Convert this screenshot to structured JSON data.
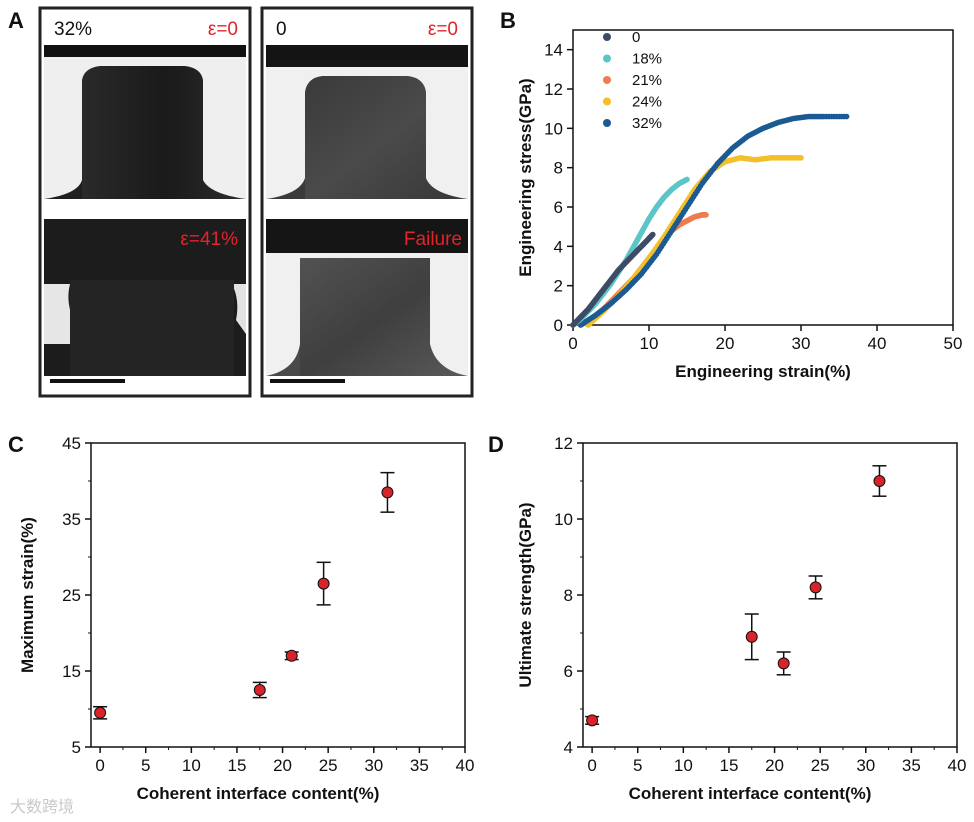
{
  "panels": {
    "A": {
      "label": "A",
      "images": [
        {
          "name": "left-top",
          "left_text": "32%",
          "right_text": "ε=0"
        },
        {
          "name": "left-bottom",
          "left_text": "",
          "right_text": "ε=41%"
        },
        {
          "name": "right-top",
          "left_text": "0",
          "right_text": "ε=0"
        },
        {
          "name": "right-bottom",
          "left_text": "",
          "right_text": "Failure"
        }
      ],
      "label_color_dark": "#111111",
      "label_color_red": "#e0242c"
    },
    "B": {
      "label": "B"
    },
    "C": {
      "label": "C"
    },
    "D": {
      "label": "D"
    }
  },
  "watermark": "大数跨境",
  "chart_data": [
    {
      "id": "B",
      "type": "scatter",
      "title": "",
      "xlabel": "Engineering strain(%)",
      "ylabel": "Engineering stress(GPa)",
      "xlim": [
        0,
        50
      ],
      "ylim": [
        0,
        15
      ],
      "xticks": [
        0,
        10,
        20,
        30,
        40,
        50
      ],
      "yticks": [
        0,
        2,
        4,
        6,
        8,
        10,
        12,
        14
      ],
      "legend_position": "top-left",
      "series": [
        {
          "name": "0",
          "color": "#3d4c66",
          "x": [
            0,
            1,
            2,
            3,
            4,
            5,
            6,
            7,
            8,
            9,
            10,
            10.5
          ],
          "y": [
            0,
            0.4,
            0.8,
            1.3,
            1.8,
            2.3,
            2.8,
            3.2,
            3.6,
            4.0,
            4.4,
            4.6
          ]
        },
        {
          "name": "18%",
          "color": "#5cc5c8",
          "x": [
            0,
            1,
            2,
            3,
            4,
            5,
            6,
            7,
            8,
            9,
            10,
            11,
            12,
            13,
            14,
            15
          ],
          "y": [
            0,
            0.3,
            0.7,
            1.1,
            1.6,
            2.1,
            2.7,
            3.3,
            4.0,
            4.7,
            5.4,
            6.0,
            6.5,
            6.9,
            7.2,
            7.4
          ]
        },
        {
          "name": "21%",
          "color": "#f07b4f",
          "x": [
            1,
            2,
            3,
            4,
            5,
            6,
            7,
            8,
            9,
            10,
            11,
            12,
            13,
            14,
            15,
            16,
            17,
            17.5
          ],
          "y": [
            0,
            0.2,
            0.5,
            0.8,
            1.2,
            1.6,
            2.0,
            2.4,
            2.9,
            3.4,
            3.9,
            4.4,
            4.8,
            5.1,
            5.3,
            5.5,
            5.6,
            5.6
          ]
        },
        {
          "name": "24%",
          "color": "#f4c02a",
          "x": [
            2,
            4,
            6,
            8,
            10,
            12,
            14,
            16,
            18,
            20,
            22,
            24,
            26,
            28,
            30
          ],
          "y": [
            0,
            0.7,
            1.5,
            2.4,
            3.4,
            4.5,
            5.7,
            6.9,
            7.8,
            8.3,
            8.5,
            8.4,
            8.5,
            8.5,
            8.5
          ]
        },
        {
          "name": "32%",
          "color": "#1b5a92",
          "x": [
            1,
            3,
            5,
            7,
            9,
            11,
            13,
            15,
            17,
            19,
            21,
            23,
            25,
            27,
            29,
            31,
            33,
            36
          ],
          "y": [
            0,
            0.5,
            1.1,
            1.8,
            2.6,
            3.6,
            4.8,
            6.0,
            7.2,
            8.2,
            9.0,
            9.6,
            10.0,
            10.3,
            10.5,
            10.6,
            10.6,
            10.6
          ]
        }
      ]
    },
    {
      "id": "C",
      "type": "scatter",
      "title": "",
      "xlabel": "Coherent interface content(%)",
      "ylabel": "Maximum strain(%)",
      "xlim": [
        -1,
        40
      ],
      "ylim": [
        5,
        45
      ],
      "xticks": [
        0,
        5,
        10,
        15,
        20,
        25,
        30,
        35,
        40
      ],
      "yticks": [
        5,
        15,
        25,
        35,
        45
      ],
      "marker_color": "#d8232a",
      "points": [
        {
          "x": 0,
          "y": 9.5,
          "err": 0.8
        },
        {
          "x": 17.5,
          "y": 12.5,
          "err": 1.0
        },
        {
          "x": 21,
          "y": 17,
          "err": 0.5
        },
        {
          "x": 24.5,
          "y": 26.5,
          "err": 2.8
        },
        {
          "x": 31.5,
          "y": 38.5,
          "err": 2.6
        }
      ]
    },
    {
      "id": "D",
      "type": "scatter",
      "title": "",
      "xlabel": "Coherent interface content(%)",
      "ylabel": "Ultimate strength(GPa)",
      "xlim": [
        -1,
        40
      ],
      "ylim": [
        4,
        12
      ],
      "xticks": [
        0,
        5,
        10,
        15,
        20,
        25,
        30,
        35,
        40
      ],
      "yticks": [
        4,
        6,
        8,
        10,
        12
      ],
      "marker_color": "#d8232a",
      "points": [
        {
          "x": 0,
          "y": 4.7,
          "err": 0.1
        },
        {
          "x": 17.5,
          "y": 6.9,
          "err": 0.6
        },
        {
          "x": 21,
          "y": 6.2,
          "err": 0.3
        },
        {
          "x": 24.5,
          "y": 8.2,
          "err": 0.3
        },
        {
          "x": 31.5,
          "y": 11.0,
          "err": 0.4
        }
      ]
    }
  ]
}
